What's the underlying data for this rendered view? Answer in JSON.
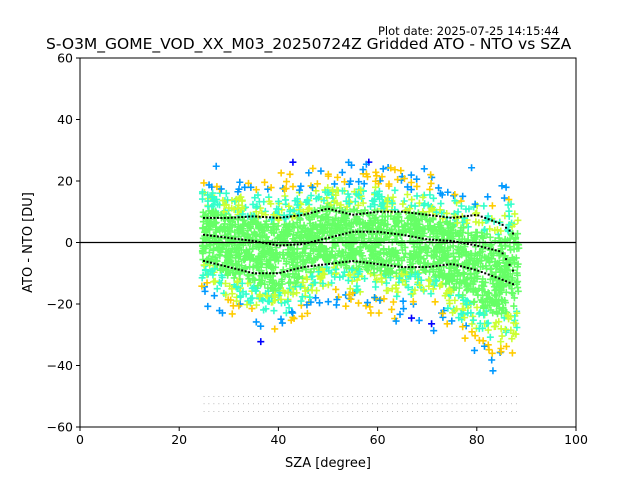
{
  "plot_date": "Plot date: 2025-07-25 14:15:44",
  "chart_data": {
    "type": "scatter",
    "title": "S-O3M_GOME_VOD_XX_M03_20250724Z Gridded ATO - NTO vs SZA",
    "xlabel": "SZA [degree]",
    "ylabel": "ATO - NTO [DU]",
    "xlim": [
      0,
      100
    ],
    "ylim": [
      -60,
      60
    ],
    "xticks": [
      0,
      20,
      40,
      60,
      80,
      100
    ],
    "yticks": [
      -60,
      -40,
      -20,
      0,
      20,
      40,
      60
    ],
    "grid": false,
    "marker": "+",
    "reference_line": {
      "y": 0,
      "color": "#000000"
    },
    "point_colors": [
      "#0000ff",
      "#0099ff",
      "#33ffcc",
      "#66ff66",
      "#ccff33",
      "#ffcc00"
    ],
    "scatter_envelope": {
      "sza_range": [
        24.5,
        88.5
      ],
      "upper_edge_approx": [
        [
          25,
          27
        ],
        [
          30,
          28
        ],
        [
          40,
          28
        ],
        [
          50,
          30
        ],
        [
          60,
          30
        ],
        [
          70,
          28
        ],
        [
          80,
          26
        ],
        [
          88,
          28
        ]
      ],
      "lower_edge_approx": [
        [
          25,
          -22
        ],
        [
          30,
          -30
        ],
        [
          40,
          -38
        ],
        [
          50,
          -25
        ],
        [
          60,
          -30
        ],
        [
          70,
          -28
        ],
        [
          76,
          -38
        ],
        [
          85,
          -50
        ],
        [
          88,
          -45
        ]
      ]
    },
    "series": [
      {
        "name": "",
        "style": "dotted-black",
        "x": [
          25,
          30,
          35,
          40,
          45,
          50,
          55,
          60,
          65,
          70,
          75,
          80,
          85,
          88
        ],
        "y": [
          8,
          8,
          8.5,
          8,
          9,
          11,
          9,
          10,
          10,
          9,
          8,
          9,
          6,
          2
        ]
      },
      {
        "name": "",
        "style": "dotted-black",
        "x": [
          25,
          30,
          35,
          40,
          45,
          50,
          55,
          60,
          65,
          70,
          75,
          80,
          85,
          88
        ],
        "y": [
          2.5,
          1.5,
          0.5,
          -1,
          -0.5,
          1.5,
          3.5,
          3.5,
          2.5,
          1,
          0.5,
          -1,
          -3,
          -11
        ]
      },
      {
        "name": "",
        "style": "dotted-black",
        "x": [
          25,
          30,
          35,
          40,
          45,
          50,
          55,
          60,
          65,
          70,
          75,
          80,
          85,
          88
        ],
        "y": [
          -6,
          -8,
          -10,
          -10,
          -8,
          -7,
          -6,
          -7,
          -8,
          -8,
          -7,
          -9,
          -12,
          -14
        ]
      }
    ],
    "count_annotations": {
      "note": "three rows of tiny per-bin count labels (too small to read) near the bottom, SZA ~25-88",
      "rows": 3,
      "y_values": [
        -50.5,
        -53,
        -55.5
      ]
    }
  }
}
